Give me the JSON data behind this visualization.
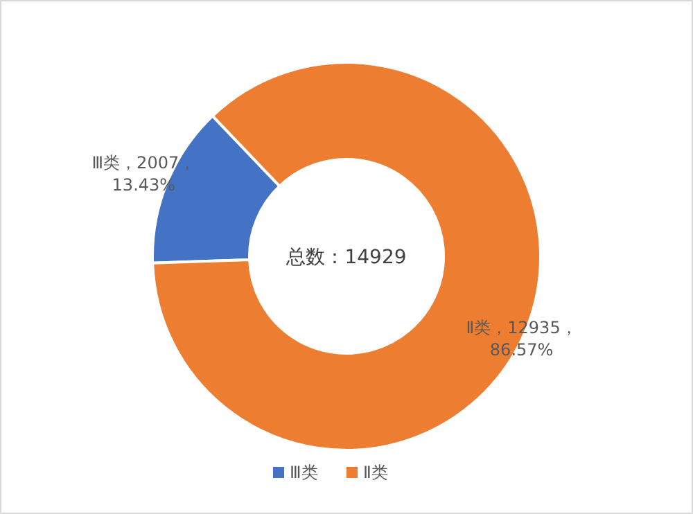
{
  "chart_data": {
    "type": "donut",
    "categories": [
      "Ⅲ类",
      "Ⅱ类"
    ],
    "values": [
      2007,
      12935
    ],
    "colors": [
      "#4472c4",
      "#ed7d31"
    ],
    "value_labels": [
      "Ⅲ类，2007，13.43%",
      "Ⅱ类，12935，86.57%"
    ],
    "annotations": [
      "总数：14929"
    ],
    "legend": "bottom"
  }
}
